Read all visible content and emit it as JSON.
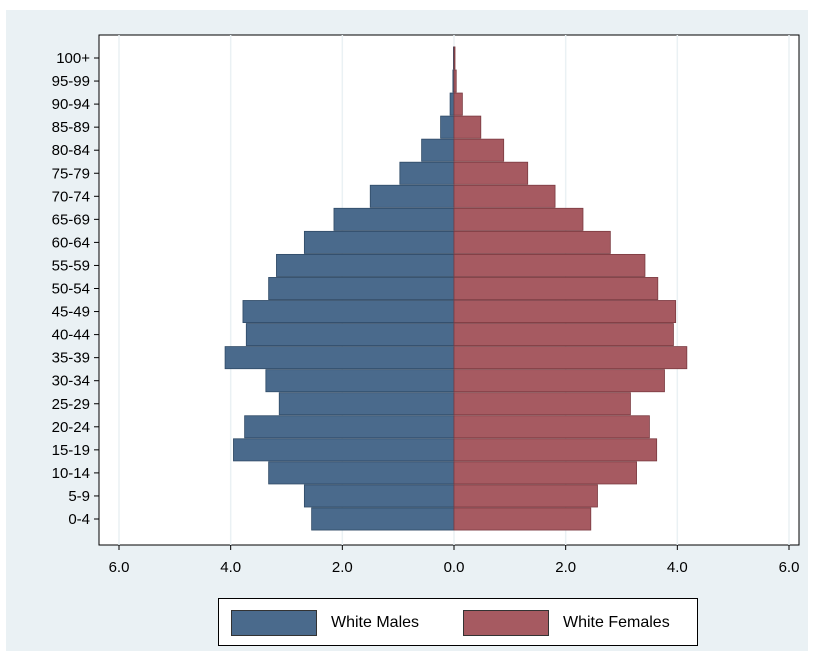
{
  "chart_data": {
    "type": "bar",
    "orientation": "horizontal",
    "layout": "population-pyramid",
    "categories": [
      "0-4",
      "5-9",
      "10-14",
      "15-19",
      "20-24",
      "25-29",
      "30-34",
      "35-39",
      "40-44",
      "45-49",
      "50-54",
      "55-59",
      "60-64",
      "65-69",
      "70-74",
      "75-79",
      "80-84",
      "85-89",
      "90-94",
      "95-99",
      "100+"
    ],
    "series": [
      {
        "name": "White Males",
        "color": "#4a6a8c",
        "direction": "left",
        "values": [
          2.55,
          2.68,
          3.32,
          3.95,
          3.75,
          3.13,
          3.37,
          4.1,
          3.72,
          3.78,
          3.32,
          3.18,
          2.68,
          2.15,
          1.5,
          0.97,
          0.58,
          0.24,
          0.07,
          0.02,
          0.01
        ]
      },
      {
        "name": "White Females",
        "color": "#a65a61",
        "direction": "right",
        "values": [
          2.45,
          2.57,
          3.27,
          3.63,
          3.5,
          3.16,
          3.77,
          4.17,
          3.93,
          3.97,
          3.65,
          3.42,
          2.8,
          2.31,
          1.81,
          1.32,
          0.89,
          0.48,
          0.15,
          0.04,
          0.01
        ]
      }
    ],
    "xticks": [
      "6.0",
      "4.0",
      "2.0",
      "0.0",
      "2.0",
      "4.0",
      "6.0"
    ],
    "xlim": [
      -6,
      6
    ],
    "title": "",
    "xlabel": "",
    "ylabel": "",
    "grid": true,
    "legend": "bottom"
  }
}
